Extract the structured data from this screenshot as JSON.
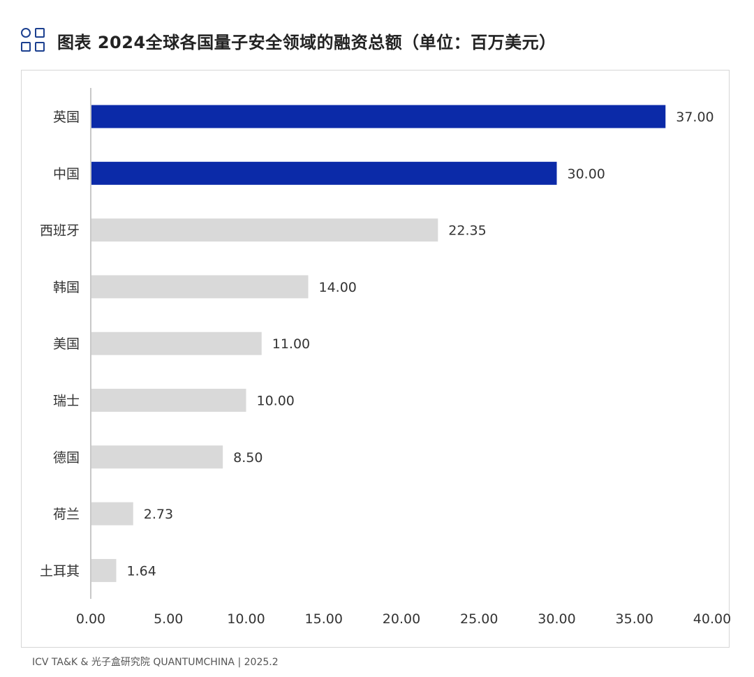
{
  "header": {
    "title": "图表 2024全球各国量子安全领域的融资总额（单位：百万美元）",
    "logo_icon": "four-shapes-grid-icon"
  },
  "footer": {
    "source": "ICV TA&K & 光子盒研究院 QUANTUMCHINA | 2025.2"
  },
  "colors": {
    "highlight": "#0b2aa8",
    "default": "#d9d9d9",
    "axis": "#c8c8c8"
  },
  "chart_data": {
    "type": "bar",
    "orientation": "horizontal",
    "categories": [
      "英国",
      "中国",
      "西班牙",
      "韩国",
      "美国",
      "瑞士",
      "德国",
      "荷兰",
      "土耳其"
    ],
    "values": [
      37.0,
      30.0,
      22.35,
      14.0,
      11.0,
      10.0,
      8.5,
      2.73,
      1.64
    ],
    "value_labels": [
      "37.00",
      "30.00",
      "22.35",
      "14.00",
      "11.00",
      "10.00",
      "8.50",
      "2.73",
      "1.64"
    ],
    "highlighted": [
      true,
      true,
      false,
      false,
      false,
      false,
      false,
      false,
      false
    ],
    "xlim": [
      0,
      40
    ],
    "xticks": [
      "0.00",
      "5.00",
      "10.00",
      "15.00",
      "20.00",
      "25.00",
      "30.00",
      "35.00",
      "40.00"
    ],
    "grid": false,
    "legend": "none"
  }
}
